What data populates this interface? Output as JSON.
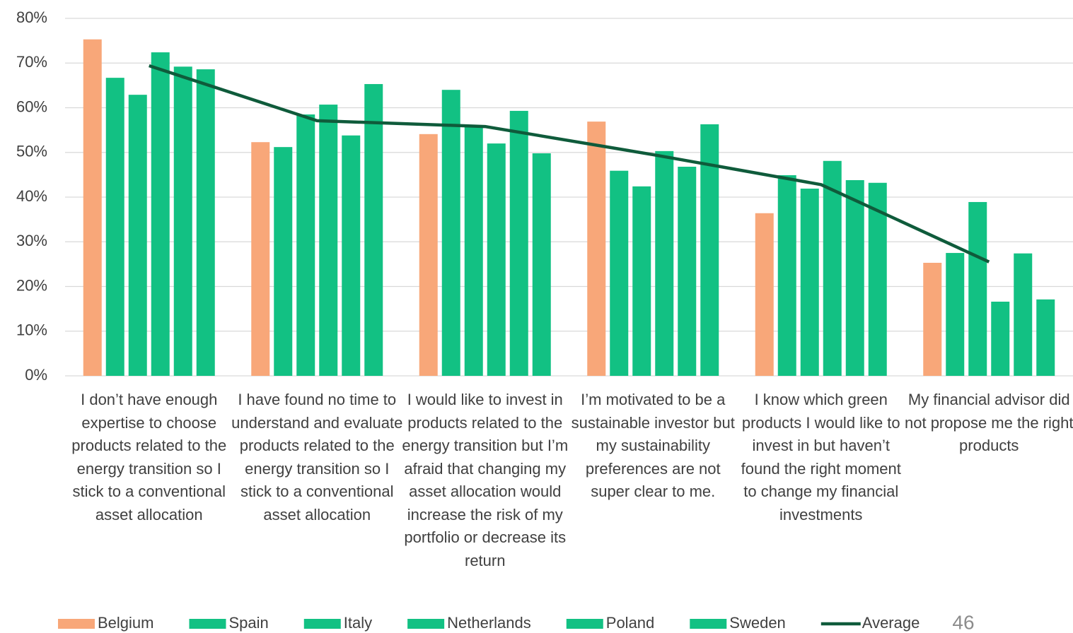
{
  "chart_data": {
    "type": "bar",
    "categories": [
      "I don’t have enough expertise to choose products related to the energy transition so I stick to a conventional asset allocation",
      "I have found no time to understand and evaluate products related to the energy transition so I stick to a conventional asset allocation",
      "I would like to invest in products related to the energy transition but I’m afraid that changing my asset allocation would increase the risk of my portfolio or decrease its return",
      "I’m motivated to be a sustainable investor but my sustainability preferences are not super clear to me.",
      "I know which green products I would like to invest in but haven’t found the right moment to change my financial investments",
      "My financial advisor did not propose me the right products"
    ],
    "series": [
      {
        "name": "Belgium",
        "color": "#f8a779",
        "values": [
          75.3,
          52.3,
          54.1,
          56.9,
          36.4,
          25.3
        ]
      },
      {
        "name": "Spain",
        "color": "#12c183",
        "values": [
          66.7,
          51.2,
          64.0,
          45.9,
          44.9,
          27.5
        ]
      },
      {
        "name": "Italy",
        "color": "#12c183",
        "values": [
          62.9,
          58.5,
          56.0,
          42.4,
          41.9,
          38.9
        ]
      },
      {
        "name": "Netherlands",
        "color": "#12c183",
        "values": [
          72.4,
          60.7,
          52.0,
          50.3,
          48.1,
          16.6
        ]
      },
      {
        "name": "Poland",
        "color": "#12c183",
        "values": [
          69.2,
          53.8,
          59.3,
          46.8,
          43.8,
          27.4
        ]
      },
      {
        "name": "Sweden",
        "color": "#12c183",
        "values": [
          68.6,
          65.3,
          49.8,
          56.3,
          43.2,
          17.1
        ]
      },
      {
        "name": "Average",
        "type": "line",
        "color": "#0f5b3b",
        "values": [
          69.4,
          57.1,
          55.8,
          49.5,
          42.8,
          25.5
        ]
      }
    ],
    "ylim": [
      0,
      80
    ],
    "yticks": [
      {
        "value": 0,
        "label": "0%"
      },
      {
        "value": 10,
        "label": "10%"
      },
      {
        "value": 20,
        "label": "20%"
      },
      {
        "value": 30,
        "label": "30%"
      },
      {
        "value": 40,
        "label": "40%"
      },
      {
        "value": 50,
        "label": "50%"
      },
      {
        "value": 60,
        "label": "60%"
      },
      {
        "value": 70,
        "label": "70%"
      },
      {
        "value": 80,
        "label": "80%"
      }
    ],
    "grid": true,
    "legend": "bottom"
  },
  "page_number": "46"
}
